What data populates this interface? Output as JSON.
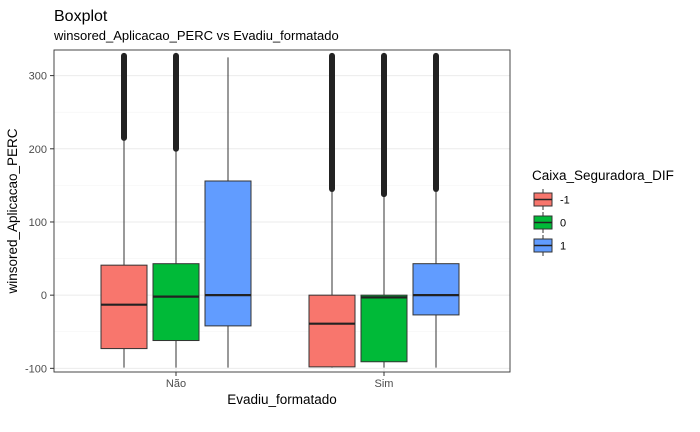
{
  "chart_data": {
    "type": "boxplot",
    "title": "Boxplot",
    "subtitle": "winsored_Aplicacao_PERC vs Evadiu_formatado",
    "xlabel": "Evadiu_formatado",
    "ylabel": "winsored_Aplicacao_PERC",
    "categories": [
      "Não",
      "Sim"
    ],
    "ylim": [
      -105,
      335
    ],
    "yticks": [
      -100,
      0,
      100,
      200,
      300
    ],
    "grid": true,
    "legend": {
      "title": "Caixa_Seguradora_DIF",
      "position": "right",
      "entries": [
        "-1",
        "0",
        "1"
      ]
    },
    "series": [
      {
        "name": "-1",
        "color": "#F8766D",
        "boxes": [
          {
            "category": "Não",
            "min": -99,
            "q1": -73,
            "median": -13,
            "q3": 41,
            "max": 212,
            "outliers_from": 215,
            "outliers_to": 327
          },
          {
            "category": "Sim",
            "min": -99,
            "q1": -98,
            "median": -39,
            "q3": 0,
            "max": 143,
            "outliers_from": 145,
            "outliers_to": 327
          }
        ]
      },
      {
        "name": "0",
        "color": "#00BA38",
        "boxes": [
          {
            "category": "Não",
            "min": -99,
            "q1": -62,
            "median": -2,
            "q3": 43,
            "max": 198,
            "outliers_from": 200,
            "outliers_to": 327
          },
          {
            "category": "Sim",
            "min": -99,
            "q1": -91,
            "median": -3,
            "q3": 0,
            "max": 135,
            "outliers_from": 138,
            "outliers_to": 327
          }
        ]
      },
      {
        "name": "1",
        "color": "#619CFF",
        "boxes": [
          {
            "category": "Não",
            "min": -99,
            "q1": -42,
            "median": 0,
            "q3": 156,
            "max": 325,
            "outliers_from": null,
            "outliers_to": null
          },
          {
            "category": "Sim",
            "min": -99,
            "q1": -27,
            "median": 0,
            "q3": 43,
            "max": 141,
            "outliers_from": 145,
            "outliers_to": 327
          }
        ]
      }
    ]
  }
}
